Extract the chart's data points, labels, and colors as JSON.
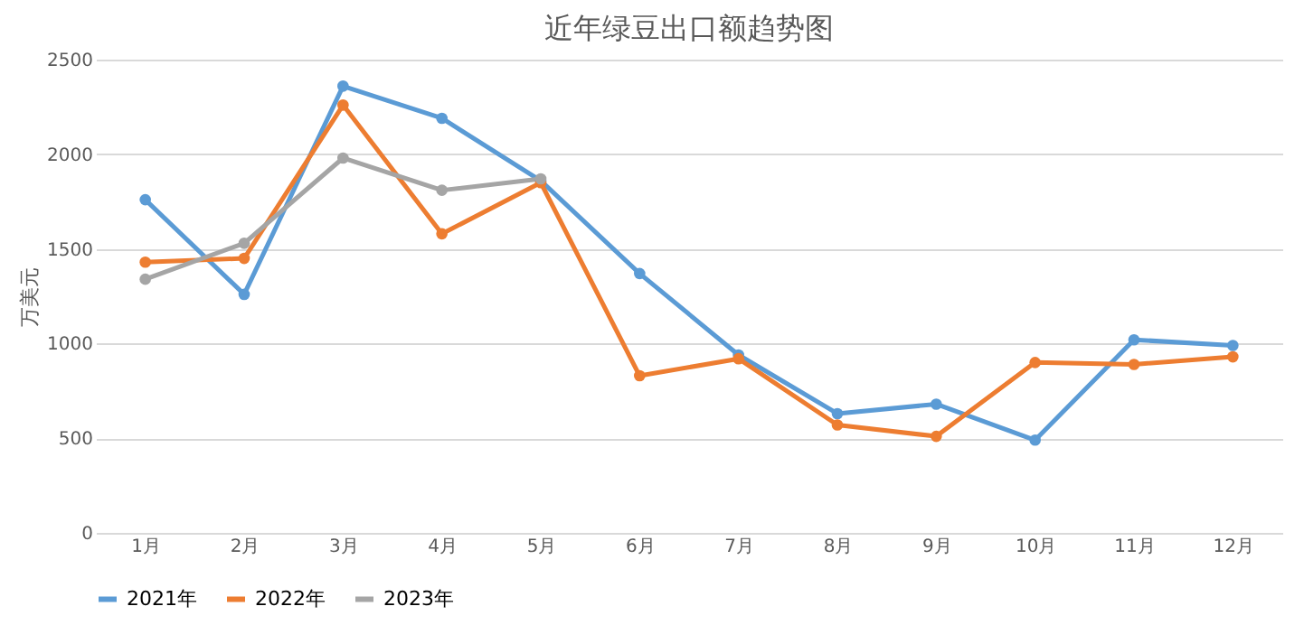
{
  "chart_data": {
    "type": "line",
    "title": "近年绿豆出口额趋势图",
    "ylabel": "万美元",
    "categories": [
      "1月",
      "2月",
      "3月",
      "4月",
      "5月",
      "6月",
      "7月",
      "8月",
      "9月",
      "10月",
      "11月",
      "12月"
    ],
    "series": [
      {
        "name": "2021年",
        "color": "#5b9bd5",
        "values": [
          1760,
          1260,
          2360,
          2190,
          1860,
          1370,
          940,
          630,
          680,
          490,
          1020,
          990
        ]
      },
      {
        "name": "2022年",
        "color": "#ed7d31",
        "values": [
          1430,
          1450,
          2260,
          1580,
          1850,
          830,
          920,
          570,
          510,
          900,
          890,
          930
        ]
      },
      {
        "name": "2023年",
        "color": "#a5a5a5",
        "values": [
          1340,
          1530,
          1980,
          1810,
          1870,
          null,
          null,
          null,
          null,
          null,
          null,
          null
        ]
      }
    ],
    "ylim": [
      0,
      2500
    ],
    "yticks": [
      0,
      500,
      1000,
      1500,
      2000,
      2500
    ],
    "grid": "y",
    "legend": "bottom",
    "marker": "circle",
    "line_style": "solid"
  }
}
